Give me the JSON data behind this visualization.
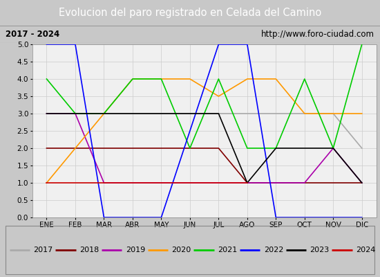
{
  "title": "Evolucion del paro registrado en Celada del Camino",
  "subtitle_left": "2017 - 2024",
  "subtitle_right": "http://www.foro-ciudad.com",
  "months": [
    "ENE",
    "FEB",
    "MAR",
    "ABR",
    "MAY",
    "JUN",
    "JUL",
    "AGO",
    "SEP",
    "OCT",
    "NOV",
    "DIC"
  ],
  "ylim": [
    0.0,
    5.0
  ],
  "yticks": [
    0.0,
    0.5,
    1.0,
    1.5,
    2.0,
    2.5,
    3.0,
    3.5,
    4.0,
    4.5,
    5.0
  ],
  "series": {
    "2017": {
      "color": "#aaaaaa",
      "values": [
        3.0,
        3.0,
        3.0,
        3.0,
        3.0,
        3.0,
        3.0,
        3.0,
        3.0,
        3.0,
        3.0,
        2.0
      ]
    },
    "2018": {
      "color": "#800000",
      "values": [
        2.0,
        2.0,
        2.0,
        2.0,
        2.0,
        2.0,
        2.0,
        1.0,
        1.0,
        1.0,
        1.0,
        1.0
      ]
    },
    "2019": {
      "color": "#aa00aa",
      "values": [
        3.0,
        3.0,
        1.0,
        1.0,
        1.0,
        1.0,
        1.0,
        1.0,
        1.0,
        1.0,
        2.0,
        1.0
      ]
    },
    "2020": {
      "color": "#ff9900",
      "values": [
        1.0,
        2.0,
        3.0,
        4.0,
        4.0,
        4.0,
        3.5,
        4.0,
        4.0,
        3.0,
        3.0,
        3.0
      ]
    },
    "2021": {
      "color": "#00cc00",
      "values": [
        4.0,
        3.0,
        3.0,
        4.0,
        4.0,
        2.0,
        4.0,
        2.0,
        2.0,
        4.0,
        2.0,
        5.0
      ]
    },
    "2022": {
      "color": "#0000ff",
      "values": [
        5.0,
        5.0,
        0.0,
        0.0,
        0.0,
        2.5,
        5.0,
        5.0,
        0.0,
        0.0,
        0.0,
        0.0
      ]
    },
    "2023": {
      "color": "#000000",
      "values": [
        3.0,
        3.0,
        3.0,
        3.0,
        3.0,
        3.0,
        3.0,
        1.0,
        2.0,
        2.0,
        2.0,
        1.0
      ]
    },
    "2024": {
      "color": "#cc0000",
      "values": [
        1.0,
        1.0,
        1.0,
        1.0,
        1.0,
        1.0,
        1.0,
        1.0,
        null,
        null,
        null,
        null
      ]
    }
  },
  "background_color": "#c8c8c8",
  "plot_background": "#f0f0f0",
  "title_bg": "#4472c4",
  "title_color": "#ffffff",
  "subtitle_bg": "#d4d4d4",
  "subtitle_color": "#000000",
  "legend_bg": "#e0e0e0",
  "grid_color": "#cccccc",
  "title_fontsize": 10.5,
  "subtitle_fontsize": 8.5,
  "tick_fontsize": 7.5,
  "legend_fontsize": 8
}
